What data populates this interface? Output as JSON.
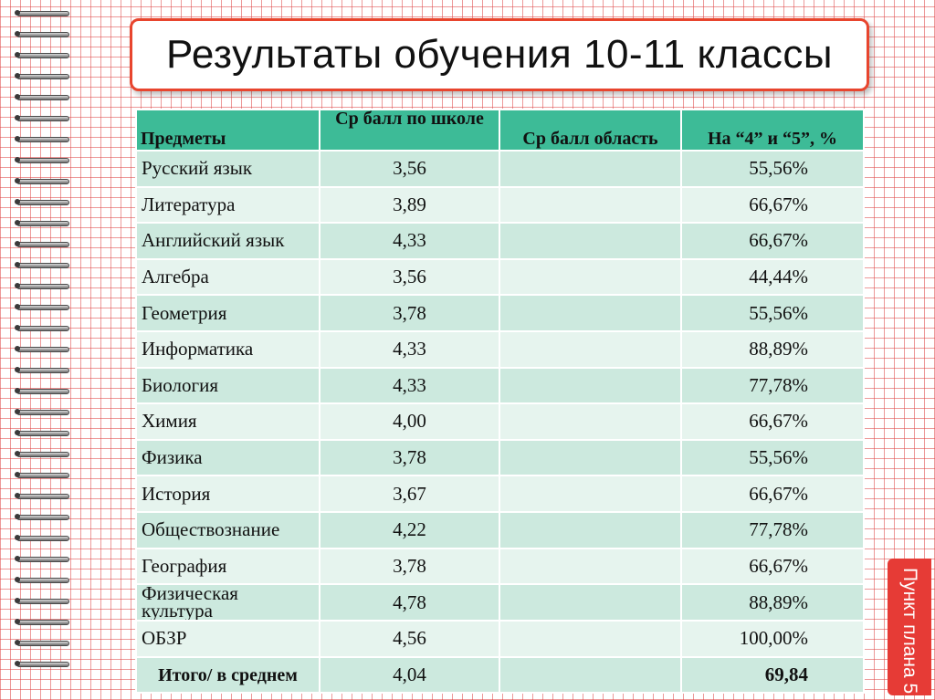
{
  "title": "Результаты обучения 10-11 классы",
  "badge": "Пункт плана 5",
  "table": {
    "headers": [
      "Предметы",
      "Ср балл по школе",
      "Ср балл область",
      "На “4” и “5”, %"
    ],
    "rows": [
      {
        "subject": "Русский язык",
        "school_avg": "3,56",
        "region_avg": "",
        "pct": "55,56%"
      },
      {
        "subject": "Литература",
        "school_avg": "3,89",
        "region_avg": "",
        "pct": "66,67%"
      },
      {
        "subject": "Английский язык",
        "school_avg": "4,33",
        "region_avg": "",
        "pct": "66,67%"
      },
      {
        "subject": "Алгебра",
        "school_avg": "3,56",
        "region_avg": "",
        "pct": "44,44%"
      },
      {
        "subject": "Геометрия",
        "school_avg": "3,78",
        "region_avg": "",
        "pct": "55,56%"
      },
      {
        "subject": "Информатика",
        "school_avg": "4,33",
        "region_avg": "",
        "pct": "88,89%"
      },
      {
        "subject": "Биология",
        "school_avg": "4,33",
        "region_avg": "",
        "pct": "77,78%"
      },
      {
        "subject": "Химия",
        "school_avg": "4,00",
        "region_avg": "",
        "pct": "66,67%"
      },
      {
        "subject": "Физика",
        "school_avg": "3,78",
        "region_avg": "",
        "pct": "55,56%"
      },
      {
        "subject": "История",
        "school_avg": "3,67",
        "region_avg": "",
        "pct": "66,67%"
      },
      {
        "subject": "Обществознание",
        "school_avg": "4,22",
        "region_avg": "",
        "pct": "77,78%"
      },
      {
        "subject": "География",
        "school_avg": "3,78",
        "region_avg": "",
        "pct": "66,67%"
      },
      {
        "subject": "Физическая культура",
        "school_avg": "4,78",
        "region_avg": "",
        "pct": "88,89%"
      },
      {
        "subject": "ОБЗР",
        "school_avg": "4,56",
        "region_avg": "",
        "pct": "100,00%"
      }
    ],
    "total": {
      "subject": "Итого/ в среднем",
      "school_avg": "4,04",
      "region_avg": "",
      "pct": "69,84"
    }
  },
  "colors": {
    "header": "#3dbb97",
    "row_dark": "#cce9de",
    "row_light": "#e6f4ee",
    "accent": "#e63b36"
  }
}
